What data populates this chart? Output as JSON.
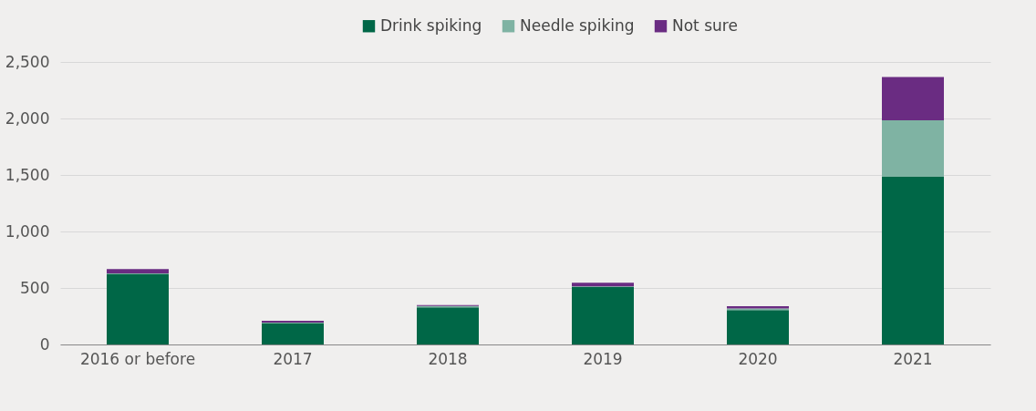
{
  "chart_data": {
    "type": "bar",
    "stacked": true,
    "categories": [
      "2016 or before",
      "2017",
      "2018",
      "2019",
      "2020",
      "2021"
    ],
    "series": [
      {
        "name": "Drink spiking",
        "color": "#006747",
        "values": [
          625,
          190,
          328,
          510,
          304,
          1483
        ]
      },
      {
        "name": "Needle spiking",
        "color": "#7fb3a3",
        "values": [
          5,
          3,
          12,
          5,
          14,
          500
        ]
      },
      {
        "name": "Not sure",
        "color": "#6a2c82",
        "values": [
          37,
          17,
          9,
          31,
          21,
          384
        ]
      }
    ],
    "ylim": [
      0,
      2500
    ],
    "yticks": [
      0,
      500,
      {
        "value": 1000,
        "label": "1,000"
      },
      {
        "value": 1500,
        "label": "1,500"
      },
      {
        "value": 2000,
        "label": "2,000"
      },
      {
        "value": 2500,
        "label": "2,500"
      }
    ],
    "grid": "y",
    "legend": "top"
  }
}
